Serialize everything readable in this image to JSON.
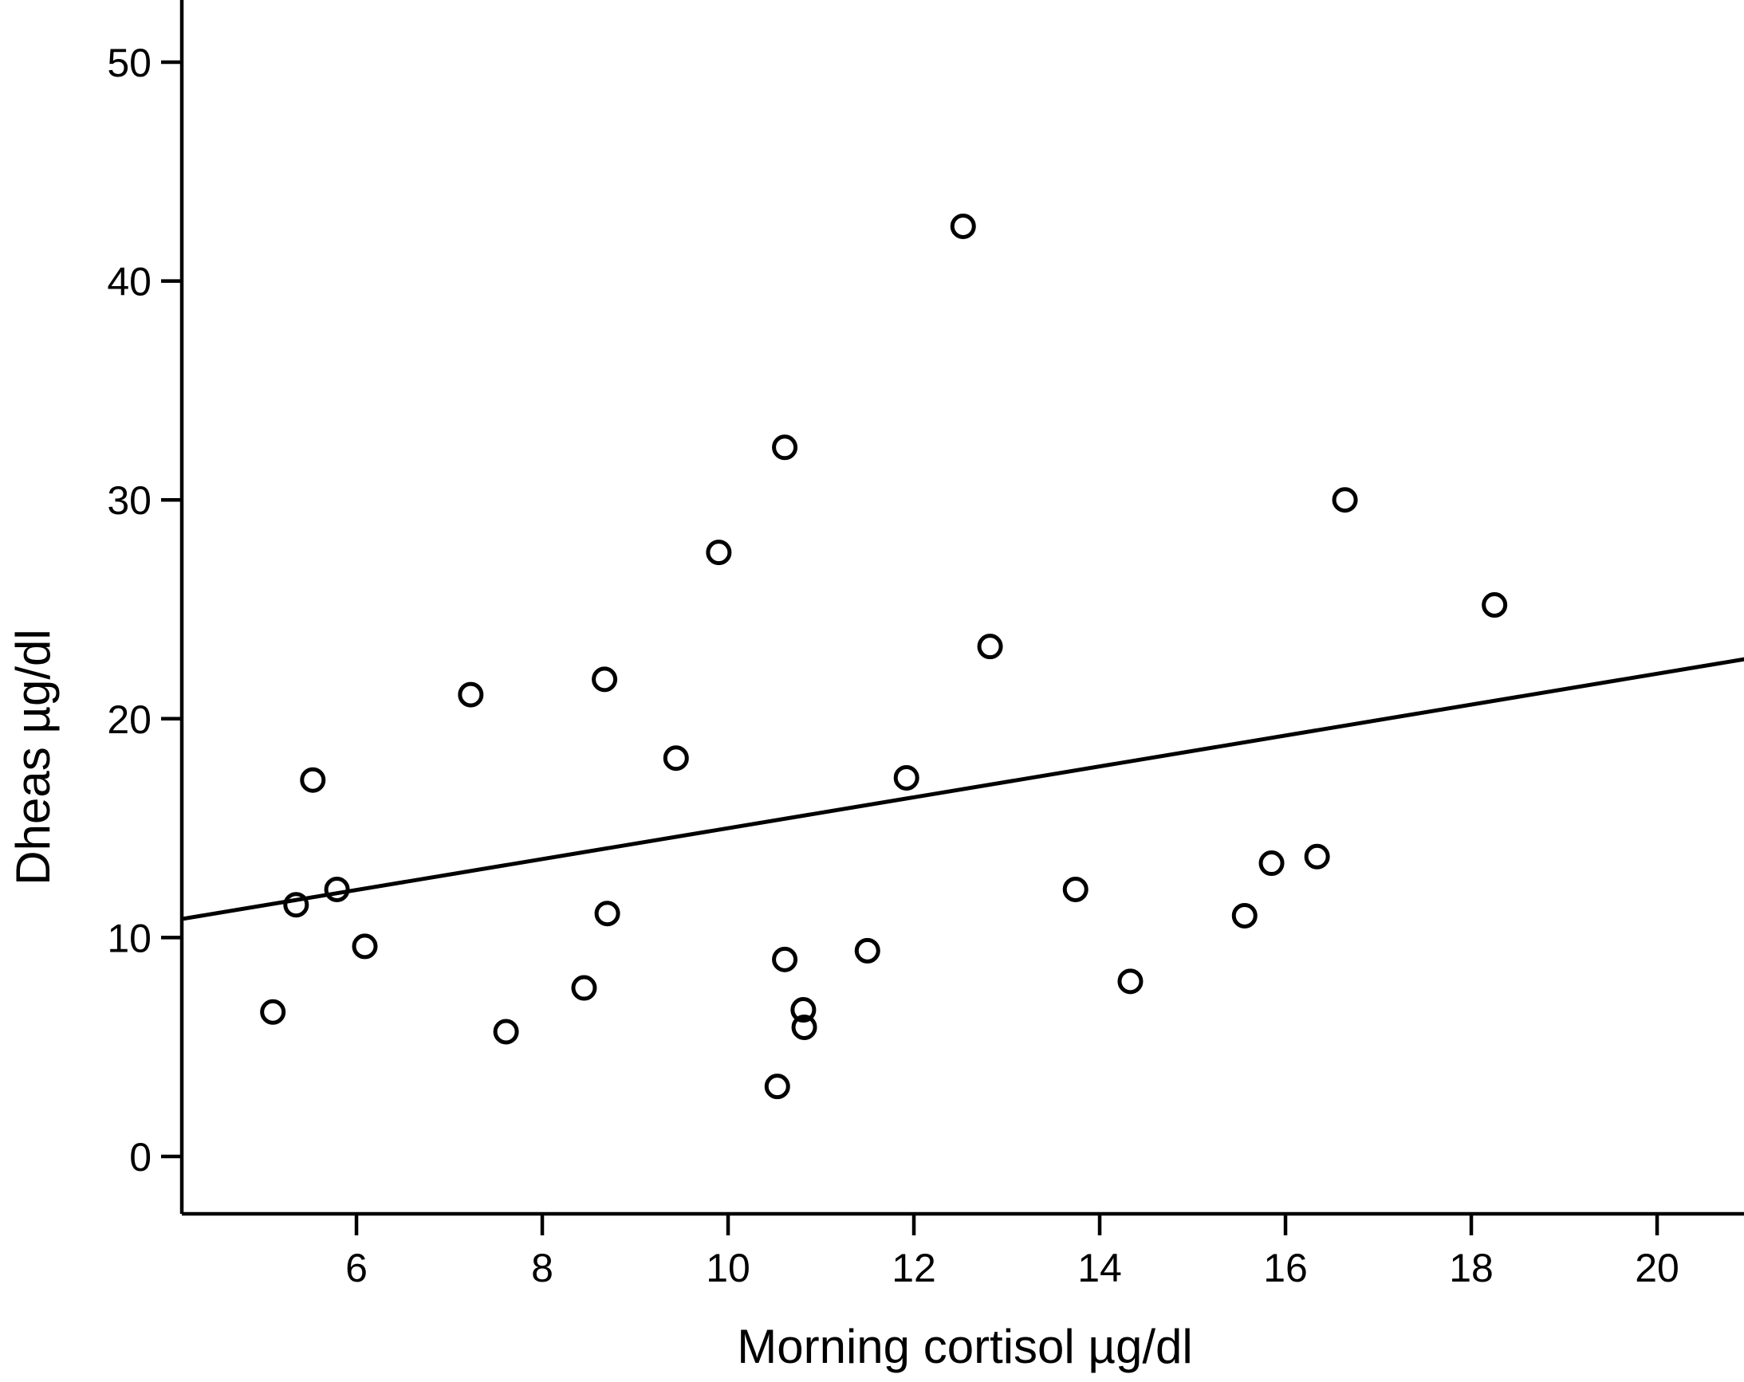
{
  "chart_data": {
    "type": "scatter",
    "title": "",
    "xlabel": "Morning cortisol µg/dl",
    "ylabel": "Dheas µg/dl",
    "x_ticks": [
      6,
      8,
      10,
      12,
      14,
      16,
      18,
      20
    ],
    "y_ticks": [
      0,
      10,
      20,
      30,
      40,
      50
    ],
    "xlim": [
      4.12,
      20.94
    ],
    "ylim": [
      -2.62,
      52.84
    ],
    "grid": false,
    "legend": "none",
    "marker": "open-circle",
    "points": [
      [
        5.1,
        6.6
      ],
      [
        5.35,
        11.5
      ],
      [
        5.53,
        17.2
      ],
      [
        5.79,
        12.2
      ],
      [
        6.09,
        9.6
      ],
      [
        7.23,
        21.1
      ],
      [
        7.61,
        5.7
      ],
      [
        8.45,
        7.7
      ],
      [
        8.67,
        21.8
      ],
      [
        8.7,
        11.1
      ],
      [
        9.44,
        18.2
      ],
      [
        9.9,
        27.6
      ],
      [
        10.53,
        3.2
      ],
      [
        10.61,
        9.0
      ],
      [
        10.61,
        32.4
      ],
      [
        10.81,
        6.7
      ],
      [
        10.82,
        5.9
      ],
      [
        11.5,
        9.4
      ],
      [
        11.92,
        17.3
      ],
      [
        12.53,
        42.5
      ],
      [
        12.82,
        23.3
      ],
      [
        13.74,
        12.2
      ],
      [
        14.33,
        8.0
      ],
      [
        15.56,
        11.0
      ],
      [
        15.85,
        13.4
      ],
      [
        16.34,
        13.7
      ],
      [
        16.64,
        30.0
      ],
      [
        18.25,
        25.2
      ]
    ],
    "trend_line": {
      "x1": 4.12,
      "y1": 10.85,
      "x2": 20.94,
      "y2": 22.72
    }
  },
  "colors": {
    "ink": "#000000",
    "background": "#ffffff"
  }
}
